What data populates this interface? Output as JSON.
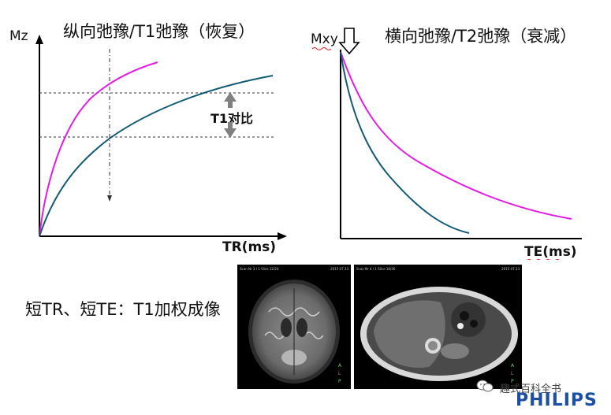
{
  "diagram": {
    "left_title": "纵向弛豫/T1弛豫（恢复）",
    "left_ylabel": "Mz",
    "left_xlabel": "TR(ms)",
    "contrast_label": "T1对比",
    "right_title": "横向弛豫/T2弛豫（衰减）",
    "right_ylabel": "Mxy",
    "right_xlabel": "TE(ms)",
    "caption": "短TR、短TE：T1加权成像"
  },
  "colors": {
    "magenta": "#e21ee0",
    "teal": "#135b74",
    "axis": "#000000",
    "arrow_gray": "#808080"
  },
  "images": {
    "brain_header": "Scan Nr 3 / 1   Slice 12/24",
    "brain_date": "2015 07 23",
    "abdomen_header": "Scan Nr 4 / 1   Slice 18/36",
    "abdomen_date": "2015 07 23"
  },
  "footer": {
    "wechat_label": "趣式百科全书",
    "brand": "PHILIPS"
  },
  "icons": {
    "wechat": "wechat-icon",
    "arrow_down": "hollow-down-arrow-icon",
    "double_arrow": "double-arrow-icon"
  }
}
